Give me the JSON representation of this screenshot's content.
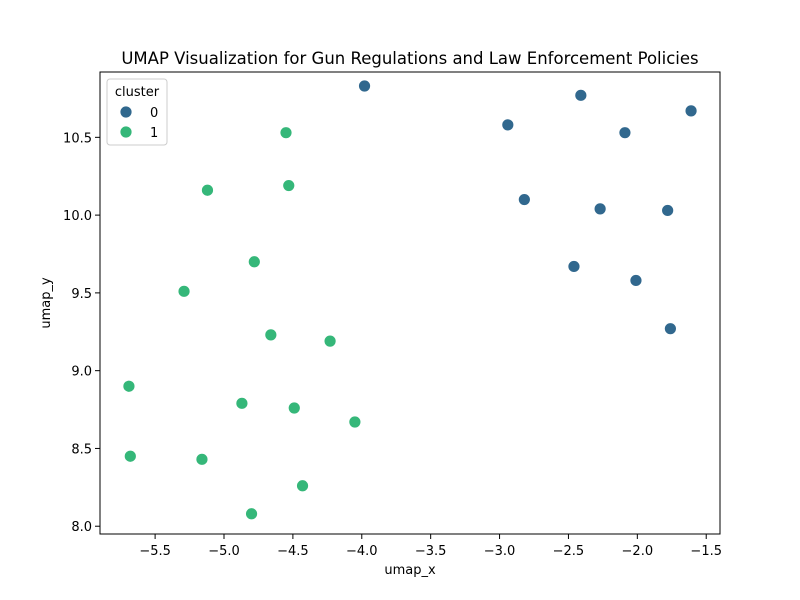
{
  "chart_data": {
    "type": "scatter",
    "title": "UMAP Visualization for Gun Regulations and Law Enforcement Policies",
    "xlabel": "umap_x",
    "ylabel": "umap_y",
    "xlim": [
      -5.9,
      -1.4
    ],
    "ylim": [
      7.95,
      10.92
    ],
    "xticks": [
      -5.5,
      -5.0,
      -4.5,
      -4.0,
      -3.5,
      -3.0,
      -2.5,
      -2.0,
      -1.5
    ],
    "xtick_labels": [
      "−5.5",
      "−5.0",
      "−4.5",
      "−4.0",
      "−3.5",
      "−3.0",
      "−2.5",
      "−2.0",
      "−1.5"
    ],
    "yticks": [
      8.0,
      8.5,
      9.0,
      9.5,
      10.0,
      10.5
    ],
    "ytick_labels": [
      "8.0",
      "8.5",
      "9.0",
      "9.5",
      "10.0",
      "10.5"
    ],
    "grid": false,
    "legend": {
      "title": "cluster",
      "placement": "top-left"
    },
    "series": [
      {
        "name": "0",
        "color": "#31688e",
        "points": [
          [
            -3.98,
            10.83
          ],
          [
            -2.41,
            10.77
          ],
          [
            -1.61,
            10.67
          ],
          [
            -2.94,
            10.58
          ],
          [
            -2.09,
            10.53
          ],
          [
            -2.82,
            10.1
          ],
          [
            -2.27,
            10.04
          ],
          [
            -1.78,
            10.03
          ],
          [
            -2.46,
            9.67
          ],
          [
            -2.01,
            9.58
          ],
          [
            -1.76,
            9.27
          ]
        ]
      },
      {
        "name": "1",
        "color": "#35b779",
        "points": [
          [
            -4.55,
            10.53
          ],
          [
            -4.53,
            10.19
          ],
          [
            -5.12,
            10.16
          ],
          [
            -4.78,
            9.7
          ],
          [
            -5.29,
            9.51
          ],
          [
            -4.66,
            9.23
          ],
          [
            -4.23,
            9.19
          ],
          [
            -5.69,
            8.9
          ],
          [
            -4.87,
            8.79
          ],
          [
            -4.49,
            8.76
          ],
          [
            -4.05,
            8.67
          ],
          [
            -5.68,
            8.45
          ],
          [
            -5.16,
            8.43
          ],
          [
            -4.43,
            8.26
          ],
          [
            -4.8,
            8.08
          ]
        ]
      }
    ]
  }
}
